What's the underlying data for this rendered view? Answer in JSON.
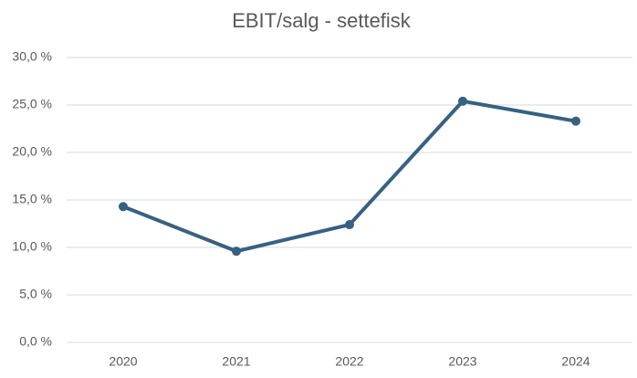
{
  "chart_data": {
    "type": "line",
    "title": "EBIT/salg - settefisk",
    "categories": [
      "2020",
      "2021",
      "2022",
      "2023",
      "2024"
    ],
    "series": [
      {
        "name": "EBIT/salg",
        "color": "#376180",
        "values": [
          14.3,
          9.6,
          12.4,
          25.4,
          23.3
        ]
      }
    ],
    "ylim": [
      0,
      30
    ],
    "yticks": [
      {
        "value": 0,
        "label": "0,0 %"
      },
      {
        "value": 5,
        "label": "5,0 %"
      },
      {
        "value": 10,
        "label": "10,0 %"
      },
      {
        "value": 15,
        "label": "15,0 %"
      },
      {
        "value": 20,
        "label": "20,0 %"
      },
      {
        "value": 25,
        "label": "25,0 %"
      },
      {
        "value": 30,
        "label": "30,0 %"
      }
    ],
    "grid": true
  }
}
